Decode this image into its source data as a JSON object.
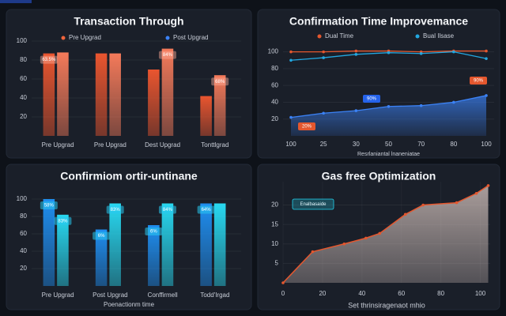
{
  "chart_data": [
    {
      "type": "bar",
      "title": "Transaction Through",
      "categories": [
        "Pre Upgrad",
        "Pre Upgrad",
        "Dest Upgrad",
        "Tonttlgrad"
      ],
      "series": [
        {
          "name": "Pre Upgrad",
          "color": "#e9552f",
          "legend_color": "#f0643c",
          "values": [
            87,
            87,
            70,
            42
          ]
        },
        {
          "name": "Post Upgrad",
          "color": "#f47a5a",
          "legend_color": "#3b82f6",
          "values": [
            88,
            87,
            92,
            64
          ]
        }
      ],
      "annotations": [
        "63.5%",
        "84%",
        "68%"
      ],
      "ylim": [
        0,
        110
      ],
      "yticks": [
        20,
        40,
        60,
        80,
        100
      ],
      "grid": true
    },
    {
      "type": "line",
      "title": "Confirmation Time Improvemance",
      "categories": [
        "100",
        "25",
        "30",
        "50",
        "70",
        "80",
        "100"
      ],
      "x_label": "Resrlaniantal lnaneniatae",
      "series": [
        {
          "name": "Dual Time",
          "color": "#e4572e",
          "values": [
            100,
            100,
            101,
            101,
            100,
            101,
            101
          ]
        },
        {
          "name": "Bual Ilsase",
          "color": "#22a7e0",
          "values": [
            90,
            93,
            97,
            99,
            98,
            100,
            92
          ]
        },
        {
          "color": "#3b82f6",
          "area": true,
          "values": [
            22,
            27,
            30,
            35,
            36,
            40,
            48
          ]
        }
      ],
      "annotations": [
        "90%",
        "90%",
        "20%"
      ],
      "ylim": [
        0,
        110
      ],
      "yticks": [
        20,
        40,
        60,
        80,
        100
      ],
      "grid": true
    },
    {
      "type": "bar",
      "title": "Confirmiom ortir-untinane",
      "categories": [
        "Pre Upgrad",
        "Post Upgrad",
        "Conffirmell",
        "Todd'Irgad"
      ],
      "x_label": "Poenactionm time",
      "series": [
        {
          "color": "#1f8ef0",
          "values": [
            100,
            65,
            70,
            95
          ]
        },
        {
          "color": "#28d8f0",
          "values": [
            82,
            95,
            95,
            95
          ]
        }
      ],
      "annotations": [
        "58%",
        "83%",
        "6%",
        "83%",
        "6%",
        "84%",
        "64%"
      ],
      "ylim": [
        0,
        110
      ],
      "yticks": [
        20,
        40,
        60,
        80,
        100
      ],
      "grid": true
    },
    {
      "type": "area",
      "title": "Gas free Optimization",
      "legend": "Enalbasaide",
      "x_label": "Set thrinsiragenaot mhio",
      "x": [
        0,
        15,
        31,
        42,
        49,
        62,
        71,
        88,
        98,
        104
      ],
      "values": [
        0,
        8,
        10,
        11.5,
        12.7,
        17.6,
        20,
        20.6,
        23,
        25
      ],
      "color": "#e4572e",
      "xlim": [
        0,
        105
      ],
      "xticks": [
        0,
        20,
        40,
        60,
        80,
        100
      ],
      "ylim": [
        0,
        26
      ],
      "yticks": [
        5,
        10,
        15,
        20
      ],
      "grid": true
    }
  ]
}
